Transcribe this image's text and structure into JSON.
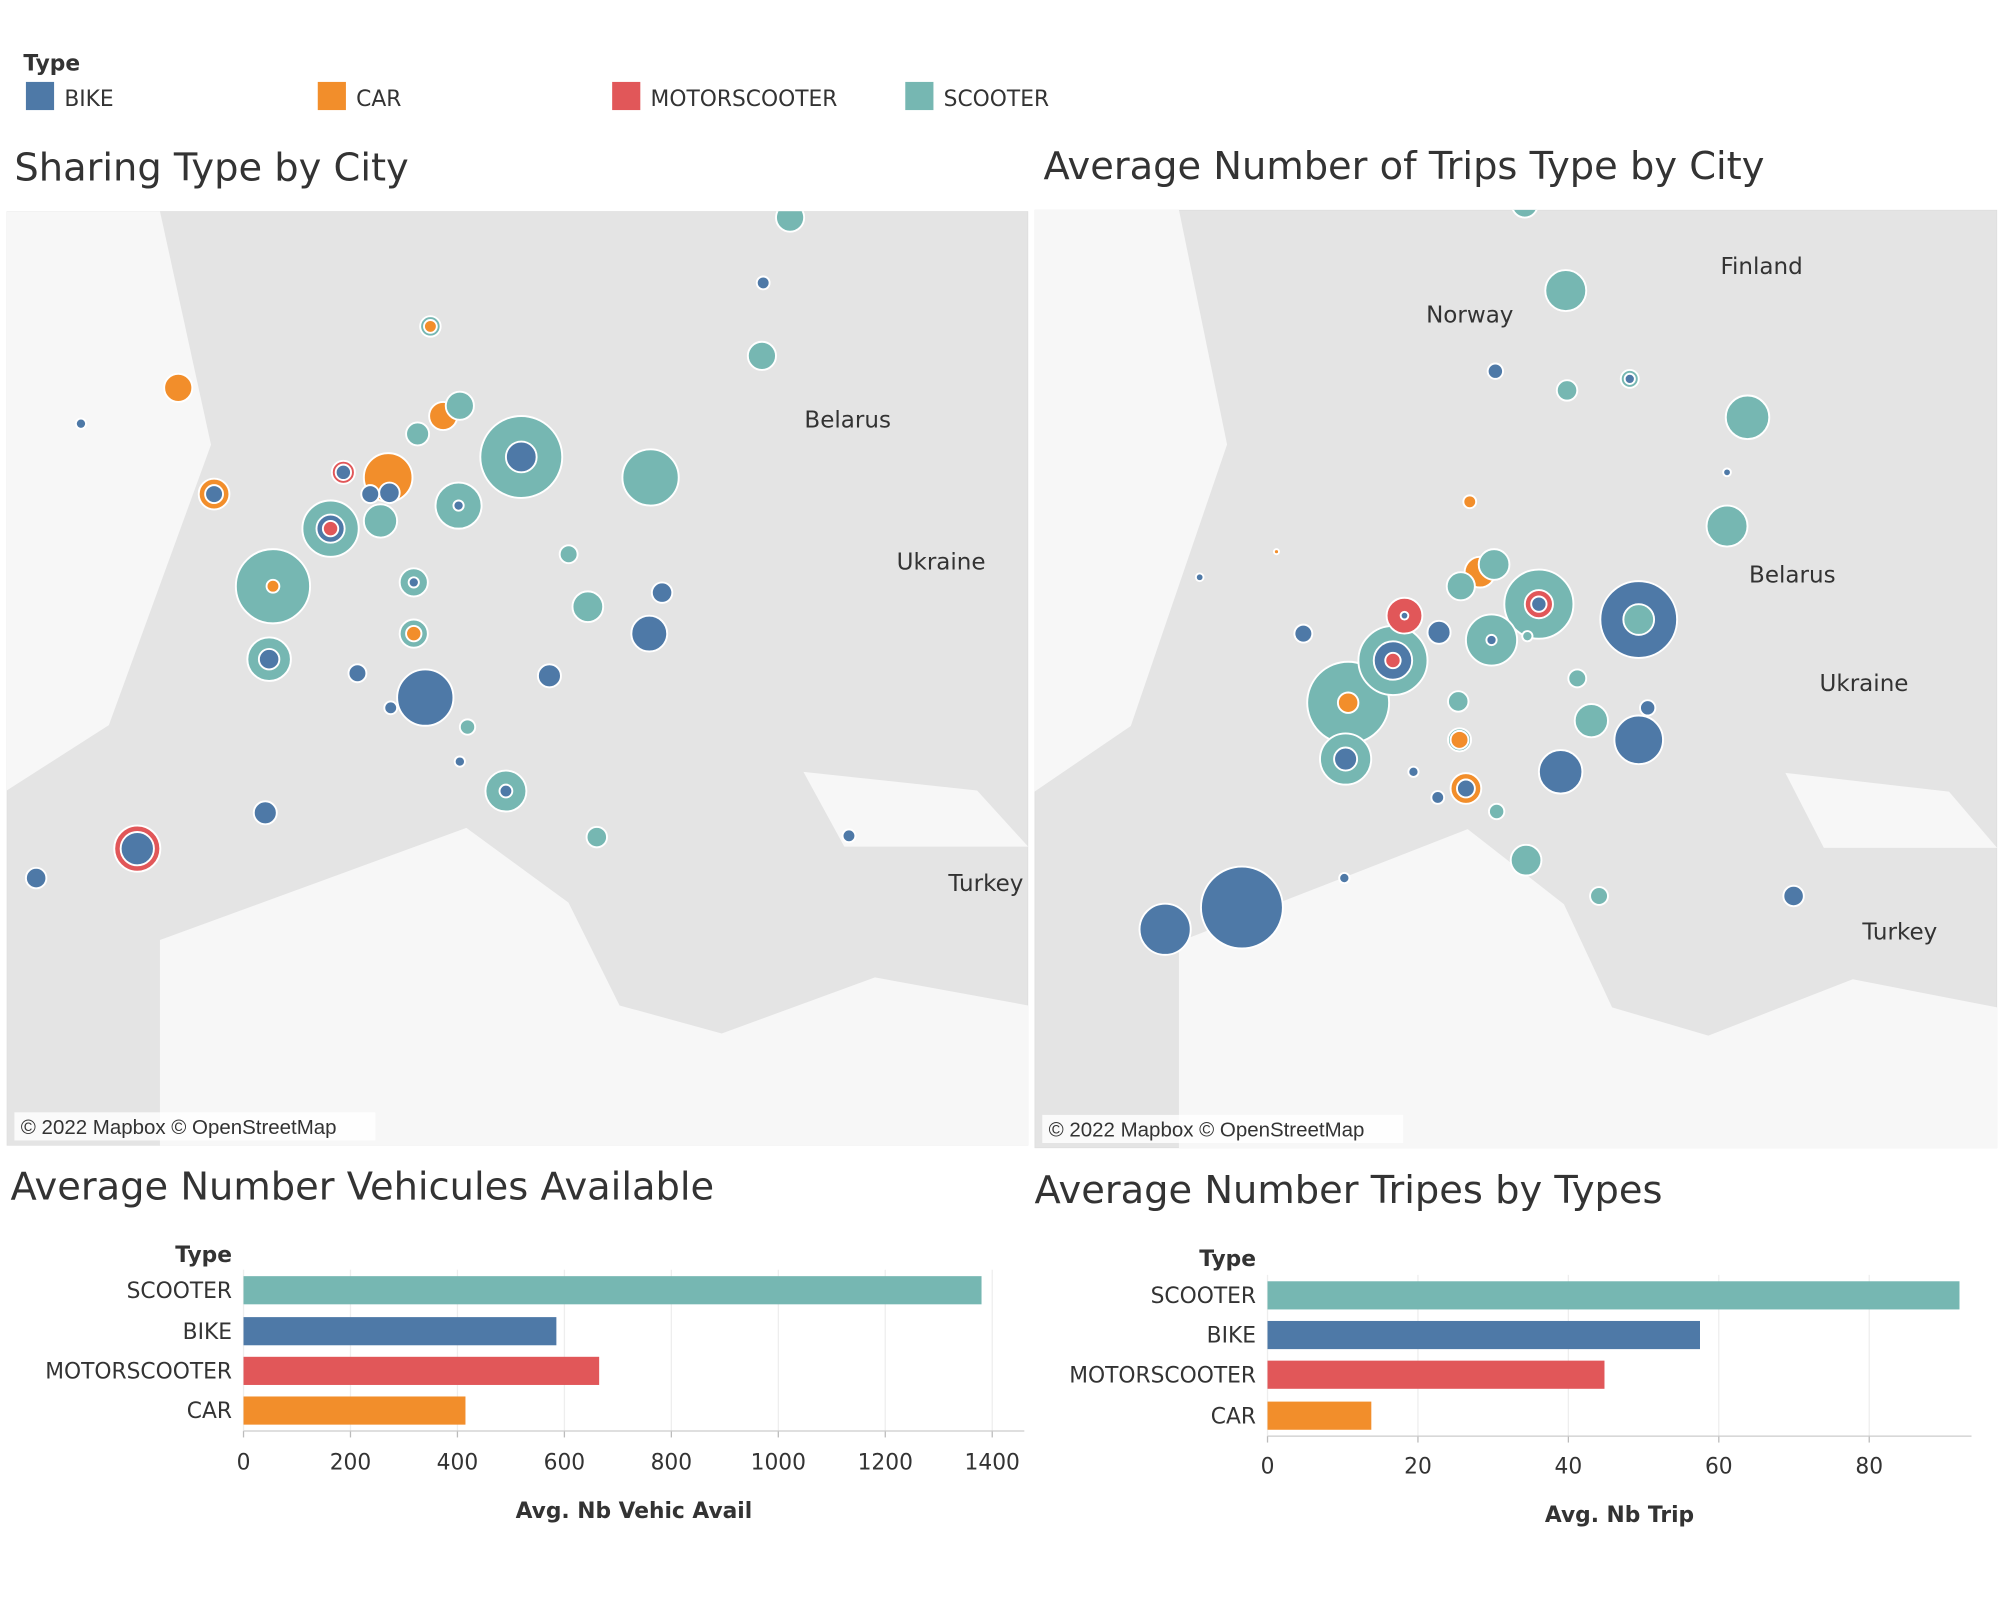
{
  "legend": {
    "title": "Type",
    "items": [
      {
        "name": "BIKE",
        "color": "#4e79a7"
      },
      {
        "name": "CAR",
        "color": "#f28e2b"
      },
      {
        "name": "MOTORSCOOTER",
        "color": "#e15759"
      },
      {
        "name": "SCOOTER",
        "color": "#76b7b2"
      }
    ]
  },
  "maps": [
    {
      "title": "Sharing Type by City",
      "labels": [
        "Belarus",
        "Ukraine",
        "Turkey"
      ],
      "attribution": "© 2022 Mapbox © OpenStreetMap"
    },
    {
      "title": "Average Number of Trips Type by City",
      "labels": [
        "Finland",
        "Norway",
        "Belarus",
        "Ukraine",
        "Turkey"
      ],
      "attribution": "© 2022 Mapbox © OpenStreetMap"
    }
  ],
  "chart_data": [
    {
      "type": "bar",
      "orientation": "horizontal",
      "title": "Average Number Vehicules Available",
      "category_label": "Type",
      "x_label": "Avg. Nb Vehic Avail",
      "categories": [
        "SCOOTER",
        "BIKE",
        "MOTORSCOOTER",
        "CAR"
      ],
      "values": [
        1380,
        585,
        665,
        415
      ],
      "colors": [
        "#76b7b2",
        "#4e79a7",
        "#e15759",
        "#f28e2b"
      ],
      "xlim": [
        0,
        1460
      ],
      "xticks": [
        0,
        200,
        400,
        600,
        800,
        1000,
        1200,
        1400
      ],
      "grid": true
    },
    {
      "type": "bar",
      "orientation": "horizontal",
      "title": "Average Number Tripes by Types",
      "category_label": "Type",
      "x_label": "Avg. Nb Trip",
      "categories": [
        "SCOOTER",
        "BIKE",
        "MOTORSCOOTER",
        "CAR"
      ],
      "values": [
        92,
        57.5,
        44.8,
        13.8
      ],
      "colors": [
        "#76b7b2",
        "#4e79a7",
        "#e15759",
        "#f28e2b"
      ],
      "xlim": [
        0,
        93.6
      ],
      "xticks": [
        0,
        20,
        40,
        60,
        80
      ],
      "grid": true
    }
  ]
}
